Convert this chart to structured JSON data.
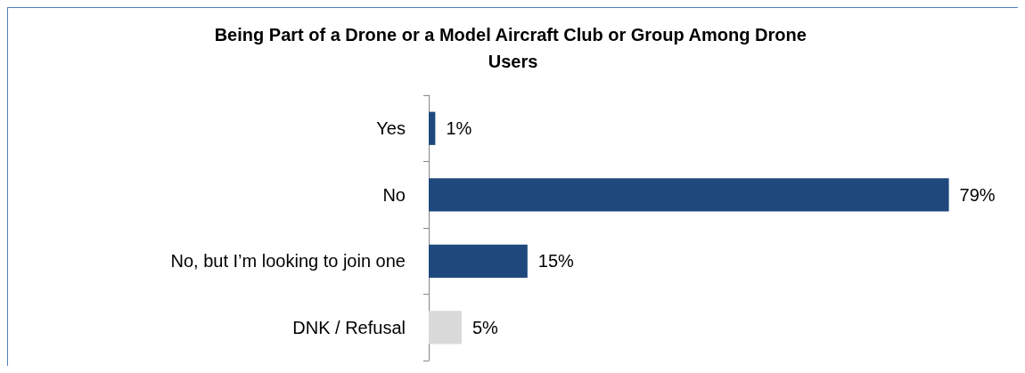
{
  "chart_data": {
    "type": "bar",
    "orientation": "horizontal",
    "title": "Being Part of a Drone or a Model Aircraft Club or Group Among Drone Users",
    "categories": [
      "Yes",
      "No",
      "No, but I’m looking to join one",
      "DNK / Refusal"
    ],
    "values": [
      1,
      79,
      15,
      5
    ],
    "colors": [
      "#1f497d",
      "#1f497d",
      "#1f497d",
      "#d9d9d9"
    ],
    "value_labels": [
      "1%",
      "79%",
      "15%",
      "5%"
    ]
  }
}
